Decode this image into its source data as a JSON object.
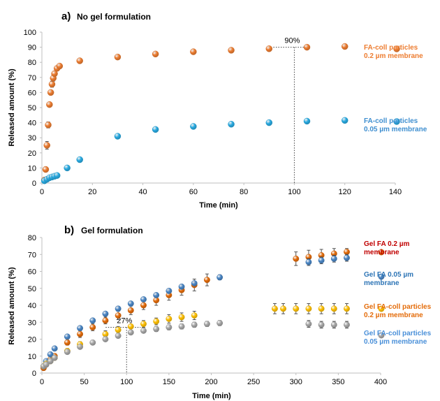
{
  "chart_data": [
    {
      "type": "scatter",
      "panel_letter": "a)",
      "title": "No gel formulation",
      "xlabel": "Time (min)",
      "ylabel": "Released amount (%)",
      "xlim": [
        0,
        140
      ],
      "ylim": [
        0,
        100
      ],
      "xticks": [
        0,
        20,
        40,
        60,
        80,
        100,
        120,
        140
      ],
      "yticks": [
        0,
        10,
        20,
        30,
        40,
        50,
        60,
        70,
        80,
        90,
        100
      ],
      "grid": false,
      "legend_placement": "right",
      "series": [
        {
          "name": "FA-coll particles\n0.2 µm membrane",
          "color": "#ED7D31",
          "legend_text_color": "#ED7D31",
          "points": [
            {
              "x": 1,
              "y": 2,
              "err": 1
            },
            {
              "x": 1.5,
              "y": 9,
              "err": 1.5
            },
            {
              "x": 2,
              "y": 25,
              "err": 2.5
            },
            {
              "x": 2.5,
              "y": 38.5,
              "err": 2
            },
            {
              "x": 3,
              "y": 52,
              "err": 1
            },
            {
              "x": 3.5,
              "y": 60,
              "err": 1
            },
            {
              "x": 4,
              "y": 65.5,
              "err": 2
            },
            {
              "x": 4.5,
              "y": 69.5,
              "err": 2
            },
            {
              "x": 5,
              "y": 72.5,
              "err": 1.5
            },
            {
              "x": 6,
              "y": 76,
              "err": 1
            },
            {
              "x": 7,
              "y": 77.5,
              "err": 1
            },
            {
              "x": 15,
              "y": 81,
              "err": 1
            },
            {
              "x": 30,
              "y": 83.5,
              "err": 1
            },
            {
              "x": 45,
              "y": 85.5,
              "err": 1
            },
            {
              "x": 60,
              "y": 87,
              "err": 1
            },
            {
              "x": 75,
              "y": 88,
              "err": 1
            },
            {
              "x": 90,
              "y": 89,
              "err": 1
            },
            {
              "x": 105,
              "y": 90,
              "err": 1
            },
            {
              "x": 120,
              "y": 90.5,
              "err": 1
            }
          ]
        },
        {
          "name": "FA-coll particles\n0.05 µm membrane",
          "color": "#29ABE2",
          "legend_text_color": "#3F8FD0",
          "points": [
            {
              "x": 1,
              "y": 1.5,
              "err": 0.5
            },
            {
              "x": 2,
              "y": 2.5,
              "err": 0.5
            },
            {
              "x": 3,
              "y": 3.5,
              "err": 0.5
            },
            {
              "x": 4,
              "y": 4,
              "err": 0.5
            },
            {
              "x": 5,
              "y": 4.5,
              "err": 0.5
            },
            {
              "x": 6,
              "y": 5,
              "err": 0.5
            },
            {
              "x": 10,
              "y": 10,
              "err": 0.5
            },
            {
              "x": 15,
              "y": 15.5,
              "err": 0.5
            },
            {
              "x": 30,
              "y": 31,
              "err": 0.5
            },
            {
              "x": 45,
              "y": 35.5,
              "err": 0.5
            },
            {
              "x": 60,
              "y": 37.5,
              "err": 0.5
            },
            {
              "x": 75,
              "y": 39,
              "err": 0.5
            },
            {
              "x": 90,
              "y": 40,
              "err": 0.5
            },
            {
              "x": 105,
              "y": 41,
              "err": 0.5
            },
            {
              "x": 120,
              "y": 41.5,
              "err": 0.5
            }
          ]
        }
      ],
      "annotations": [
        {
          "label": "90%",
          "x": 100,
          "y": 90,
          "style": "dotted-to-axis"
        }
      ]
    },
    {
      "type": "scatter",
      "panel_letter": "b)",
      "title": "Gel formulation",
      "xlabel": "Time (min)",
      "ylabel": "Released amount (%)",
      "xlim": [
        0,
        400
      ],
      "ylim": [
        0,
        80
      ],
      "xticks": [
        0,
        50,
        100,
        150,
        200,
        250,
        300,
        350,
        400
      ],
      "yticks": [
        0,
        10,
        20,
        30,
        40,
        50,
        60,
        70,
        80
      ],
      "grid": false,
      "legend_placement": "right",
      "series": [
        {
          "name": "Gel FA 0.2 µm\nmembrane",
          "color": "#E46C0A",
          "legend_text_color": "#C00000",
          "points": [
            {
              "x": 2,
              "y": 3,
              "err": 1
            },
            {
              "x": 5,
              "y": 5,
              "err": 1
            },
            {
              "x": 10,
              "y": 8,
              "err": 1.5
            },
            {
              "x": 15,
              "y": 10,
              "err": 1.5
            },
            {
              "x": 30,
              "y": 18,
              "err": 1.5
            },
            {
              "x": 45,
              "y": 23,
              "err": 2
            },
            {
              "x": 60,
              "y": 27,
              "err": 2
            },
            {
              "x": 75,
              "y": 31,
              "err": 2
            },
            {
              "x": 90,
              "y": 34,
              "err": 2.5
            },
            {
              "x": 105,
              "y": 37,
              "err": 2.5
            },
            {
              "x": 120,
              "y": 40,
              "err": 2.5
            },
            {
              "x": 135,
              "y": 43,
              "err": 3
            },
            {
              "x": 150,
              "y": 46,
              "err": 3
            },
            {
              "x": 165,
              "y": 49,
              "err": 3
            },
            {
              "x": 180,
              "y": 52,
              "err": 3.5
            },
            {
              "x": 195,
              "y": 55,
              "err": 3.5
            },
            {
              "x": 300,
              "y": 67.5,
              "err": 4
            },
            {
              "x": 315,
              "y": 68.5,
              "err": 4
            },
            {
              "x": 330,
              "y": 69.5,
              "err": 3.5
            },
            {
              "x": 345,
              "y": 70.5,
              "err": 3
            },
            {
              "x": 360,
              "y": 71.5,
              "err": 2
            }
          ]
        },
        {
          "name": "Gel FA 0.05 µm\nmembrane",
          "color": "#4A86C5",
          "legend_text_color": "#2E75B6",
          "points": [
            {
              "x": 2,
              "y": 4,
              "err": 1
            },
            {
              "x": 5,
              "y": 7,
              "err": 1
            },
            {
              "x": 10,
              "y": 11,
              "err": 1
            },
            {
              "x": 15,
              "y": 14.5,
              "err": 1
            },
            {
              "x": 30,
              "y": 21.5,
              "err": 1
            },
            {
              "x": 45,
              "y": 26.5,
              "err": 1
            },
            {
              "x": 60,
              "y": 31,
              "err": 1
            },
            {
              "x": 75,
              "y": 35,
              "err": 1
            },
            {
              "x": 90,
              "y": 38,
              "err": 1
            },
            {
              "x": 105,
              "y": 41,
              "err": 1
            },
            {
              "x": 120,
              "y": 43.5,
              "err": 1
            },
            {
              "x": 135,
              "y": 46,
              "err": 1
            },
            {
              "x": 150,
              "y": 48.5,
              "err": 1
            },
            {
              "x": 165,
              "y": 51,
              "err": 1
            },
            {
              "x": 180,
              "y": 53,
              "err": 1
            },
            {
              "x": 210,
              "y": 56.5,
              "err": 1.5
            },
            {
              "x": 315,
              "y": 65.5,
              "err": 2
            },
            {
              "x": 330,
              "y": 66.5,
              "err": 2
            },
            {
              "x": 345,
              "y": 67.5,
              "err": 2
            },
            {
              "x": 360,
              "y": 68,
              "err": 2
            }
          ]
        },
        {
          "name": "Gel FA-coll particles\n0.2 µm membrane",
          "color": "#FFC000",
          "legend_text_color": "#E46C0A",
          "points": [
            {
              "x": 2,
              "y": 4,
              "err": 1
            },
            {
              "x": 5,
              "y": 5.5,
              "err": 1
            },
            {
              "x": 10,
              "y": 7,
              "err": 1
            },
            {
              "x": 15,
              "y": 9,
              "err": 1
            },
            {
              "x": 30,
              "y": 13,
              "err": 1.5
            },
            {
              "x": 45,
              "y": 17,
              "err": 1.5
            },
            {
              "x": 75,
              "y": 23,
              "err": 2
            },
            {
              "x": 90,
              "y": 25.5,
              "err": 2
            },
            {
              "x": 105,
              "y": 27.5,
              "err": 1
            },
            {
              "x": 120,
              "y": 29,
              "err": 2
            },
            {
              "x": 135,
              "y": 30.5,
              "err": 2
            },
            {
              "x": 150,
              "y": 32,
              "err": 2.5
            },
            {
              "x": 165,
              "y": 33,
              "err": 2.5
            },
            {
              "x": 180,
              "y": 34,
              "err": 2.5
            },
            {
              "x": 275,
              "y": 38,
              "err": 3
            },
            {
              "x": 285,
              "y": 38,
              "err": 3
            },
            {
              "x": 300,
              "y": 38,
              "err": 3
            },
            {
              "x": 315,
              "y": 38,
              "err": 3
            },
            {
              "x": 330,
              "y": 38,
              "err": 3
            },
            {
              "x": 345,
              "y": 38,
              "err": 3
            },
            {
              "x": 360,
              "y": 38,
              "err": 3
            }
          ]
        },
        {
          "name": "Gel FA-coll particles\n0.05 µm membrane",
          "color": "#A6A6A6",
          "legend_text_color": "#4A90D9",
          "points": [
            {
              "x": 2,
              "y": 4,
              "err": 1
            },
            {
              "x": 5,
              "y": 5,
              "err": 1
            },
            {
              "x": 10,
              "y": 7,
              "err": 1
            },
            {
              "x": 15,
              "y": 9,
              "err": 1
            },
            {
              "x": 30,
              "y": 12.5,
              "err": 1
            },
            {
              "x": 45,
              "y": 15.5,
              "err": 1
            },
            {
              "x": 60,
              "y": 18,
              "err": 1
            },
            {
              "x": 75,
              "y": 20,
              "err": 1
            },
            {
              "x": 90,
              "y": 22,
              "err": 1
            },
            {
              "x": 105,
              "y": 24,
              "err": 1
            },
            {
              "x": 120,
              "y": 25,
              "err": 1
            },
            {
              "x": 135,
              "y": 26,
              "err": 1.5
            },
            {
              "x": 150,
              "y": 27,
              "err": 1.5
            },
            {
              "x": 165,
              "y": 27.5,
              "err": 1.5
            },
            {
              "x": 180,
              "y": 28.5,
              "err": 1.5
            },
            {
              "x": 195,
              "y": 29,
              "err": 1.5
            },
            {
              "x": 210,
              "y": 29.5,
              "err": 1.5
            },
            {
              "x": 315,
              "y": 29,
              "err": 2
            },
            {
              "x": 330,
              "y": 28.5,
              "err": 2
            },
            {
              "x": 345,
              "y": 28.5,
              "err": 2
            },
            {
              "x": 360,
              "y": 28.5,
              "err": 2
            }
          ]
        }
      ],
      "annotations": [
        {
          "label": "27%",
          "x": 100,
          "y": 27,
          "style": "dotted-to-axis"
        }
      ]
    }
  ]
}
